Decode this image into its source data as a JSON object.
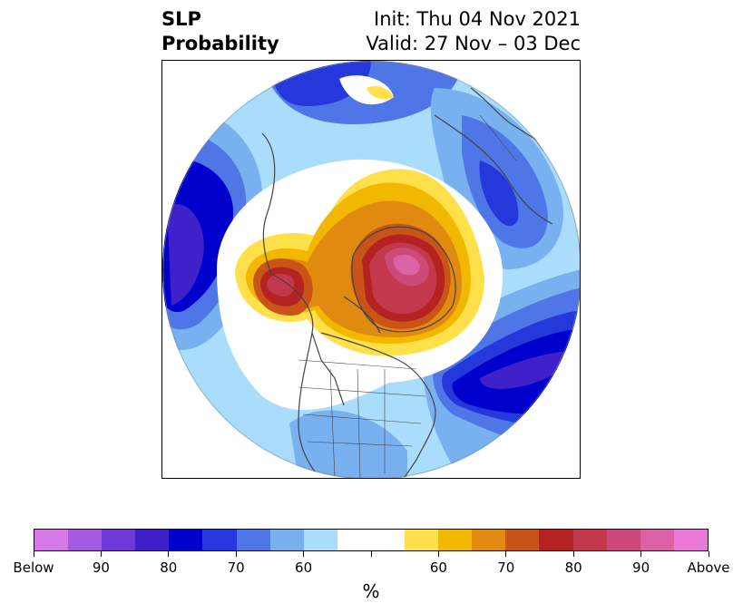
{
  "title": {
    "variable": "SLP",
    "product": "Probability",
    "init": "Init: Thu 04 Nov 2021",
    "valid": "Valid: 27 Nov – 03 Dec"
  },
  "map": {
    "projection": "north-polar-stereographic",
    "region": "Northern Hemisphere (North America / Arctic centered)",
    "features": [
      {
        "name": "Arctic / Greenland high anomaly",
        "category": "Above",
        "max_level": "90+"
      },
      {
        "name": "Alaska / Bering high anomaly",
        "category": "Above",
        "max_level": "80"
      },
      {
        "name": "North Pacific low anomaly",
        "category": "Below",
        "max_level": "90"
      },
      {
        "name": "North Atlantic low anomaly",
        "category": "Below",
        "max_level": "90"
      },
      {
        "name": "Eurasia low anomaly",
        "category": "Below",
        "max_level": "80"
      }
    ]
  },
  "colorbar": {
    "colors": [
      "#d678e8",
      "#a558e0",
      "#7038d6",
      "#4020c8",
      "#0000cc",
      "#2438dc",
      "#4e76e6",
      "#78b0f0",
      "#aadcfc",
      "#ffffff",
      "#ffffff",
      "#ffe04a",
      "#f2b800",
      "#e08a10",
      "#c85418",
      "#b42222",
      "#c4384e",
      "#cc4a7a",
      "#dc62a6",
      "#ea78d8"
    ],
    "ticks": [
      "Below",
      "90",
      "80",
      "70",
      "60",
      "",
      "60",
      "70",
      "80",
      "90",
      "Above"
    ],
    "label": "%"
  }
}
